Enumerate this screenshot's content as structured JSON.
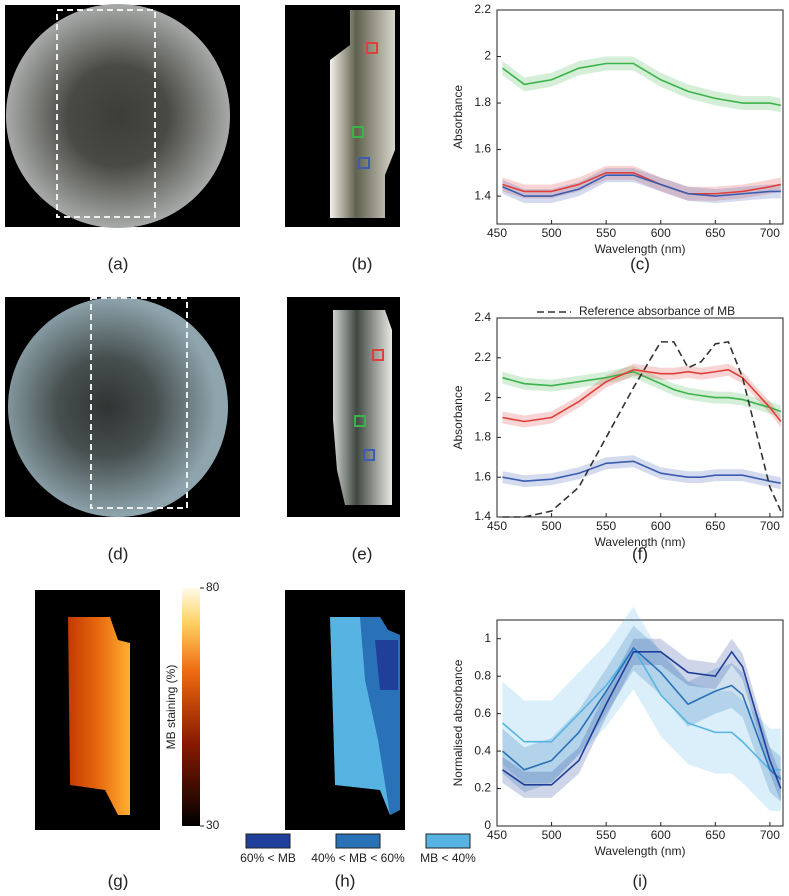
{
  "chart_data": [
    {
      "type": "line",
      "xlabel": "Wavelength (nm)",
      "ylabel": "Absorbance",
      "x": [
        455,
        475,
        500,
        525,
        550,
        575,
        600,
        625,
        650,
        675,
        700,
        710
      ],
      "xlim": [
        450,
        712
      ],
      "xticks": [
        450,
        500,
        550,
        600,
        650,
        700
      ],
      "ylim": [
        1.28,
        2.2
      ],
      "yticks": [
        1.4,
        1.6,
        1.8,
        2,
        2.2
      ],
      "series": [
        {
          "color": "#3bb34a",
          "band": 0.03,
          "values": [
            1.95,
            1.88,
            1.9,
            1.95,
            1.97,
            1.97,
            1.9,
            1.85,
            1.82,
            1.8,
            1.8,
            1.79
          ]
        },
        {
          "color": "#e0403a",
          "band": 0.03,
          "values": [
            1.45,
            1.42,
            1.42,
            1.45,
            1.5,
            1.5,
            1.45,
            1.41,
            1.41,
            1.42,
            1.44,
            1.45
          ]
        },
        {
          "color": "#3a5db0",
          "band": 0.03,
          "values": [
            1.44,
            1.4,
            1.4,
            1.43,
            1.49,
            1.49,
            1.45,
            1.41,
            1.4,
            1.41,
            1.42,
            1.42
          ]
        }
      ]
    },
    {
      "type": "line",
      "xlabel": "Wavelength (nm)",
      "ylabel": "Absorbance",
      "x": [
        455,
        475,
        500,
        525,
        550,
        575,
        600,
        612,
        625,
        637,
        650,
        662,
        675,
        700,
        710
      ],
      "xlim": [
        450,
        712
      ],
      "xticks": [
        450,
        500,
        550,
        600,
        650,
        700
      ],
      "ylim": [
        1.4,
        2.4
      ],
      "yticks": [
        1.4,
        1.6,
        1.8,
        2,
        2.2,
        2.4
      ],
      "series": [
        {
          "color": "#3bb34a",
          "band": 0.03,
          "values": [
            2.1,
            2.07,
            2.06,
            2.08,
            2.1,
            2.13,
            2.07,
            2.04,
            2.02,
            2.01,
            2.0,
            2.0,
            1.99,
            1.95,
            1.93
          ]
        },
        {
          "color": "#e0403a",
          "band": 0.03,
          "values": [
            1.9,
            1.88,
            1.9,
            1.98,
            2.08,
            2.14,
            2.12,
            2.12,
            2.13,
            2.12,
            2.13,
            2.14,
            2.1,
            1.95,
            1.88
          ]
        },
        {
          "color": "#3a5db0",
          "band": 0.03,
          "values": [
            1.6,
            1.58,
            1.59,
            1.62,
            1.67,
            1.68,
            1.62,
            1.61,
            1.6,
            1.6,
            1.61,
            1.61,
            1.61,
            1.58,
            1.57
          ]
        },
        {
          "name": "Reference absorbance of MB",
          "color": "#333333",
          "dashed": true,
          "values": [
            1.4,
            1.4,
            1.43,
            1.55,
            1.8,
            2.05,
            2.28,
            2.28,
            2.15,
            2.18,
            2.27,
            2.28,
            2.1,
            1.55,
            1.43
          ]
        }
      ]
    },
    {
      "type": "line",
      "xlabel": "Wavelength (nm)",
      "ylabel": "Normalised absorbance",
      "x": [
        455,
        475,
        500,
        525,
        550,
        575,
        600,
        625,
        650,
        665,
        675,
        700,
        710
      ],
      "xlim": [
        450,
        712
      ],
      "xticks": [
        450,
        500,
        550,
        600,
        650,
        700
      ],
      "ylim": [
        0,
        1.1
      ],
      "yticks": [
        0,
        0.2,
        0.4,
        0.6,
        0.8,
        1
      ],
      "series": [
        {
          "color": "#57b4e2",
          "band": 0.22,
          "values": [
            0.55,
            0.45,
            0.45,
            0.6,
            0.75,
            0.95,
            0.7,
            0.55,
            0.5,
            0.5,
            0.45,
            0.3,
            0.3
          ]
        },
        {
          "color": "#2a72b8",
          "band": 0.12,
          "values": [
            0.4,
            0.3,
            0.35,
            0.5,
            0.72,
            0.95,
            0.82,
            0.65,
            0.72,
            0.75,
            0.7,
            0.3,
            0.25
          ]
        },
        {
          "color": "#1f3f9a",
          "band": 0.07,
          "values": [
            0.3,
            0.22,
            0.22,
            0.35,
            0.65,
            0.93,
            0.93,
            0.82,
            0.8,
            0.93,
            0.85,
            0.35,
            0.2
          ]
        }
      ]
    }
  ],
  "colorbar": {
    "label": "MB staining (%)",
    "lim": [
      30,
      80
    ],
    "ticks": [
      30,
      80
    ]
  },
  "staining_legend": [
    {
      "label": "60% < MB",
      "color": "#1f3f9a"
    },
    {
      "label": "40% < MB < 60%",
      "color": "#2a72b8"
    },
    {
      "label": "MB < 40%",
      "color": "#57b4e2"
    }
  ],
  "panel_labels": [
    "(a)",
    "(b)",
    "(c)",
    "(d)",
    "(e)",
    "(f)",
    "(g)",
    "(h)",
    "(i)"
  ]
}
